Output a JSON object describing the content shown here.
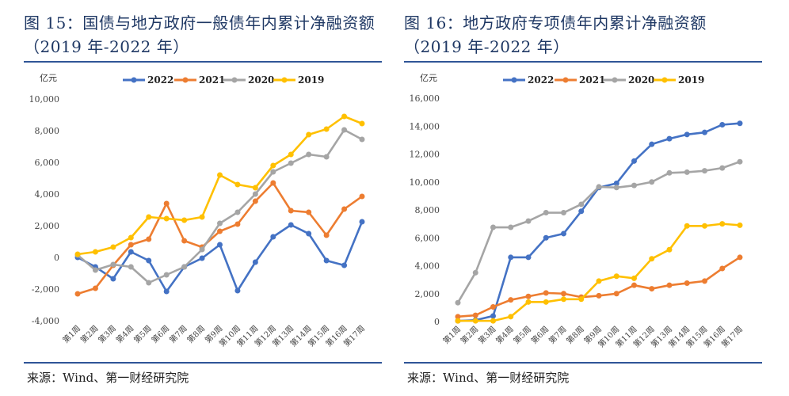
{
  "charts_meta": [
    {
      "title": "图 15：国债与地方政府一般债年内累计净融资额（2019 年-2022 年）",
      "source": "来源：Wind、第一财经研究院"
    },
    {
      "title": "图 16：地方政府专项债年内累计净融资额（2019 年-2022 年）",
      "source": "来源：Wind、第一财经研究院"
    }
  ],
  "chart_data": [
    {
      "type": "line",
      "title": "图 15：国债与地方政府一般债年内累计净融资额（2019 年-2022 年）",
      "ylabel": "亿元",
      "ylim": [
        -4000,
        10000
      ],
      "yticks": [
        -4000,
        -2000,
        0,
        2000,
        4000,
        6000,
        8000,
        10000
      ],
      "ytick_labels": [
        "-4,000",
        "-2,000",
        "0",
        "2,000",
        "4,000",
        "6,000",
        "8,000",
        "10,000"
      ],
      "grid": false,
      "legend": "top",
      "categories": [
        "第1周",
        "第2周",
        "第3周",
        "第4周",
        "第5周",
        "第6周",
        "第7周",
        "第8周",
        "第9周",
        "第10周",
        "第11周",
        "第12周",
        "第13周",
        "第14周",
        "第15周",
        "第16周",
        "第17周"
      ],
      "series": [
        {
          "name": "2022",
          "color": "#4472c4",
          "values": [
            0,
            -600,
            -1350,
            350,
            -200,
            -2150,
            -600,
            -50,
            800,
            -2100,
            -300,
            1300,
            2050,
            1500,
            -200,
            -500,
            2250
          ]
        },
        {
          "name": "2021",
          "color": "#ed7d31",
          "values": [
            -2300,
            -1950,
            -500,
            800,
            1150,
            3400,
            1050,
            650,
            1650,
            2100,
            3550,
            4700,
            2950,
            2850,
            1400,
            3050,
            3850
          ]
        },
        {
          "name": "2020",
          "color": "#a5a5a5",
          "values": [
            150,
            -800,
            -450,
            -600,
            -1600,
            -1100,
            -600,
            500,
            2150,
            2850,
            4000,
            5400,
            5950,
            6500,
            6350,
            8050,
            7450
          ]
        },
        {
          "name": "2019",
          "color": "#ffc000",
          "values": [
            200,
            350,
            650,
            1250,
            2550,
            2450,
            2350,
            2550,
            5200,
            4600,
            4400,
            5800,
            6500,
            7750,
            8100,
            8900,
            8450
          ]
        }
      ]
    },
    {
      "type": "line",
      "title": "图 16：地方政府专项债年内累计净融资额（2019 年-2022 年）",
      "ylabel": "亿元",
      "ylim": [
        0,
        16000
      ],
      "yticks": [
        0,
        2000,
        4000,
        6000,
        8000,
        10000,
        12000,
        14000,
        16000
      ],
      "ytick_labels": [
        "0",
        "2,000",
        "4,000",
        "6,000",
        "8,000",
        "10,000",
        "12,000",
        "14,000",
        "16,000"
      ],
      "grid": false,
      "legend": "top",
      "categories": [
        "第1周",
        "第2周",
        "第3周",
        "第4周",
        "第5周",
        "第6周",
        "第7周",
        "第8周",
        "第9周",
        "第10周",
        "第11周",
        "第12周",
        "第13周",
        "第14周",
        "第15周",
        "第16周",
        "第17周"
      ],
      "series": [
        {
          "name": "2022",
          "color": "#4472c4",
          "values": [
            50,
            100,
            400,
            4600,
            4600,
            6000,
            6300,
            7900,
            9600,
            9900,
            11500,
            12700,
            13100,
            13400,
            13550,
            14100,
            14200
          ]
        },
        {
          "name": "2021",
          "color": "#ed7d31",
          "values": [
            350,
            450,
            1050,
            1550,
            1800,
            2050,
            2000,
            1750,
            1850,
            2000,
            2600,
            2350,
            2600,
            2750,
            2900,
            3800,
            4600
          ]
        },
        {
          "name": "2020",
          "color": "#a5a5a5",
          "values": [
            1350,
            3500,
            6750,
            6750,
            7200,
            7800,
            7800,
            8400,
            9650,
            9600,
            9750,
            10000,
            10650,
            10700,
            10800,
            11000,
            11450
          ]
        },
        {
          "name": "2019",
          "color": "#ffc000",
          "values": [
            50,
            50,
            50,
            350,
            1400,
            1400,
            1600,
            1600,
            2900,
            3250,
            3100,
            4500,
            5150,
            6850,
            6850,
            7000,
            6900
          ]
        }
      ]
    }
  ]
}
